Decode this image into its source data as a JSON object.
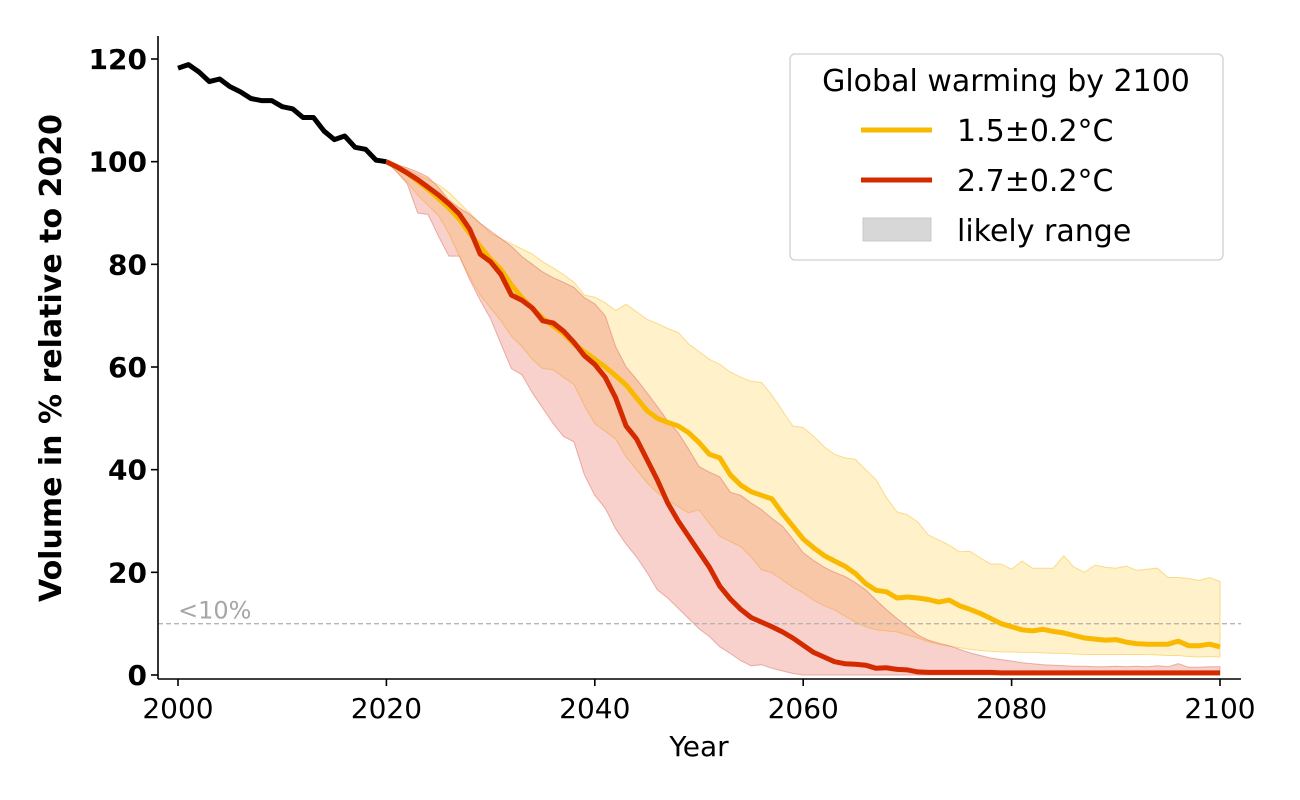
{
  "chart_data": {
    "type": "line",
    "title": "",
    "xlabel": "Year",
    "ylabel": "Volume in % relative to 2020",
    "xlim": [
      1998,
      2102
    ],
    "ylim": [
      -1,
      124
    ],
    "xticks": [
      2000,
      2020,
      2040,
      2060,
      2080,
      2100
    ],
    "yticks": [
      0,
      20,
      40,
      60,
      80,
      100,
      120
    ],
    "xtick_labels": [
      "2000",
      "2020",
      "2040",
      "2060",
      "2080",
      "2100"
    ],
    "ytick_labels": [
      "0",
      "20",
      "40",
      "60",
      "80",
      "100",
      "120"
    ],
    "grid": false,
    "legend": {
      "title": "Global warming by 2100",
      "placement": "top-right",
      "entries": [
        {
          "label": "1.5±0.2°C",
          "kind": "line",
          "color": "#f9b900"
        },
        {
          "label": "2.7±0.2°C",
          "kind": "line",
          "color": "#d42a00"
        },
        {
          "label": "likely range",
          "kind": "patch",
          "color": "#d7d7d7"
        }
      ]
    },
    "reference_line": {
      "y": 10,
      "label": "<10%",
      "color": "#b0b0b0",
      "style": "dashed"
    },
    "historical": {
      "name": "observed",
      "color": "#000000",
      "x": [
        2000,
        2001,
        2002,
        2003,
        2004,
        2005,
        2006,
        2007,
        2008,
        2009,
        2010,
        2011,
        2012,
        2013,
        2014,
        2015,
        2016,
        2017,
        2018,
        2019,
        2020
      ],
      "y": [
        118.2,
        118.9,
        117.5,
        115.6,
        116.1,
        114.6,
        113.6,
        112.3,
        111.9,
        111.9,
        110.7,
        110.3,
        108.6,
        108.6,
        106.0,
        104.3,
        105.0,
        102.8,
        102.4,
        100.3,
        100.0
      ]
    },
    "series": [
      {
        "name": "1.5±0.2°C",
        "color": "#f9b900",
        "band_color": "#fdeec8",
        "x_start": 2020,
        "values": [
          100,
          99,
          97.8,
          96.2,
          94.6,
          92.8,
          91,
          88.8,
          86,
          83.5,
          81,
          79,
          76,
          73.5,
          71.5,
          69.5,
          68,
          66.5,
          64.5,
          63,
          61.5,
          60,
          58.3,
          56.5,
          54,
          51.5,
          50,
          49.2,
          48.5,
          47.2,
          45.3,
          43,
          42.3,
          39,
          37,
          35.7,
          35,
          34.3,
          31.5,
          29,
          26.5,
          24.8,
          23.3,
          22.2,
          21.2,
          19.8,
          17.8,
          16.5,
          16.2,
          15,
          15.2,
          15,
          14.7,
          14.2,
          14.6,
          13.5,
          12.8,
          12,
          11,
          10,
          9.4,
          8.8,
          8.6,
          8.9,
          8.5,
          8.2,
          7.7,
          7.2,
          7.0,
          6.8,
          6.9,
          6.4,
          6.1,
          6.0,
          6.0,
          6.0,
          6.6,
          5.7,
          5.7,
          6.0,
          5.5
        ],
        "upper": [
          100,
          99.5,
          98.5,
          97.5,
          96.5,
          95.5,
          94,
          92,
          90,
          88,
          86,
          85,
          84,
          83,
          82,
          80.5,
          79.3,
          78,
          76.5,
          74,
          73.6,
          72.5,
          71,
          72.2,
          70.8,
          69.3,
          68.5,
          67.5,
          66.7,
          64.5,
          63,
          61.5,
          60.5,
          59,
          58,
          57.2,
          57,
          54.5,
          51.5,
          48.5,
          48.2,
          46.5,
          44.5,
          43,
          42.3,
          42,
          40,
          38,
          34.5,
          31.8,
          31.2,
          29.8,
          27.3,
          26.3,
          25.3,
          24,
          24.1,
          22.8,
          21.6,
          21.6,
          20.6,
          22.2,
          20.8,
          20.8,
          20.8,
          23.2,
          21,
          20,
          21.4,
          21,
          20.8,
          21.2,
          20.4,
          20.6,
          20.8,
          19,
          19,
          18.8,
          18.4,
          19,
          18.2
        ],
        "lower": [
          100,
          98,
          96,
          93.5,
          91.5,
          89.5,
          86,
          81.6,
          77.5,
          74,
          71.5,
          69,
          66,
          64,
          61.5,
          59.7,
          59.5,
          58,
          56.6,
          52.5,
          49,
          47.5,
          46,
          42.5,
          40,
          37.5,
          35.5,
          34,
          32.8,
          31.6,
          32.2,
          29.5,
          27,
          26,
          25,
          23,
          20.5,
          19.9,
          18.5,
          17.1,
          16,
          14.6,
          13.5,
          12.7,
          11.5,
          10.3,
          9.4,
          8.8,
          8.6,
          8.4,
          7.8,
          7.2,
          6.5,
          6,
          5.6,
          5.3,
          5,
          4.8,
          4.6,
          4.5,
          4.5,
          4.4,
          4.4,
          4.3,
          4.2,
          4.2,
          4.1,
          4,
          4,
          4,
          4,
          4,
          4,
          4,
          3.9,
          3.8,
          3.8,
          3.6,
          3.5,
          3.6,
          3.5
        ]
      },
      {
        "name": "2.7±0.2°C",
        "color": "#d42a00",
        "band_color": "#f2b8b0",
        "x_start": 2020,
        "values": [
          100,
          99,
          97.8,
          96.5,
          95,
          93.5,
          91.8,
          89.8,
          86.8,
          82,
          80.5,
          78,
          74,
          73,
          71.5,
          69,
          68.6,
          67,
          64.8,
          62.2,
          60.5,
          58,
          54,
          48.5,
          46,
          42,
          38,
          33.5,
          30,
          27,
          24,
          21,
          17.3,
          14.8,
          12.8,
          11.2,
          10.3,
          9.4,
          8.4,
          7.2,
          5.8,
          4.4,
          3.5,
          2.6,
          2.2,
          2.1,
          1.9,
          1.3,
          1.4,
          1.1,
          1.0,
          0.6,
          0.5,
          0.5,
          0.5,
          0.5,
          0.5,
          0.5,
          0.5,
          0.4,
          0.4,
          0.4,
          0.4,
          0.4,
          0.4,
          0.4,
          0.4,
          0.4,
          0.4,
          0.4,
          0.4,
          0.4,
          0.4,
          0.4,
          0.4,
          0.4,
          0.4,
          0.4,
          0.4,
          0.4,
          0.4
        ],
        "upper": [
          100,
          99.4,
          98.8,
          98,
          97,
          95,
          92.5,
          91,
          89.7,
          88,
          86.5,
          85,
          83.5,
          81.5,
          80,
          78.5,
          77.4,
          76.5,
          75.5,
          73.5,
          72.3,
          70,
          64,
          60,
          57.6,
          55,
          52.3,
          49.5,
          47.2,
          44,
          40.6,
          39.5,
          38.6,
          35.6,
          35,
          33.5,
          32.2,
          30.5,
          29,
          26.5,
          23.8,
          22.3,
          21,
          20,
          19.2,
          18,
          16.6,
          14.6,
          12.7,
          11,
          9.4,
          7.8,
          6.8,
          6.2,
          5.7,
          5,
          4.3,
          3.8,
          3.3,
          3,
          2.7,
          2.4,
          2.2,
          2.0,
          1.9,
          1.8,
          1.7,
          1.7,
          1.6,
          1.6,
          1.7,
          1.6,
          1.7,
          1.6,
          1.8,
          1.6,
          2.2,
          1.5,
          1.5,
          1.6,
          1.6
        ],
        "lower": [
          100,
          98,
          95.7,
          90,
          89.7,
          85.5,
          81.6,
          81.6,
          77,
          73,
          69.4,
          64.5,
          59.7,
          58.5,
          55,
          52,
          49,
          46.5,
          45.4,
          39,
          35,
          32.5,
          28.5,
          25.5,
          23,
          20,
          16.6,
          15,
          13,
          11,
          9,
          7.5,
          5.5,
          4.2,
          2.8,
          1.8,
          2,
          1.3,
          0.8,
          0.3,
          0,
          0,
          0,
          0,
          0,
          0,
          0,
          0,
          0,
          0,
          0,
          0,
          0,
          0,
          0,
          0,
          0,
          0,
          0,
          0,
          0,
          0,
          0,
          0,
          0,
          0,
          0,
          0,
          0,
          0,
          0,
          0,
          0,
          0,
          0,
          0,
          0,
          0,
          0,
          0,
          0
        ]
      }
    ]
  }
}
